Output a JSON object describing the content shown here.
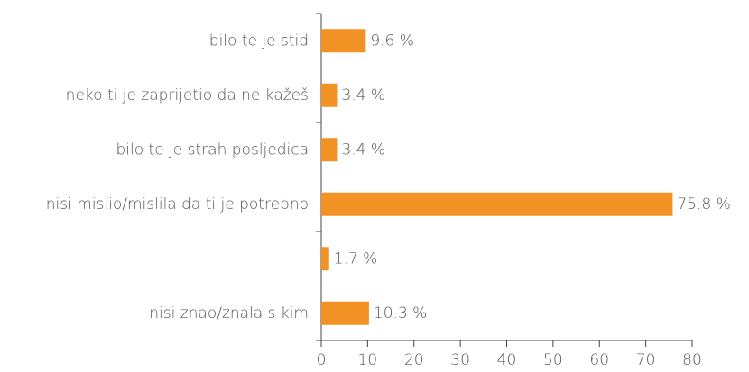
{
  "chart_data": {
    "type": "hbar",
    "categories": [
      "bilo te je stid",
      "neko ti je zaprijetio da ne kažeš",
      "bilo te je strah posljedica",
      "nisi mislio/mislila da ti je potrebno",
      null,
      "nisi znao/znala s kim"
    ],
    "values": [
      9.6,
      3.4,
      3.4,
      75.8,
      1.7,
      10.3
    ],
    "value_labels": [
      "9.6 %",
      "3.4 %",
      "3.4 %",
      "75.8 %",
      "1.7 %",
      "10.3 %"
    ],
    "color": "#f39224",
    "xlim": [
      0,
      80
    ],
    "xticks": [
      0,
      10,
      20,
      30,
      40,
      50,
      60,
      70,
      80
    ]
  }
}
